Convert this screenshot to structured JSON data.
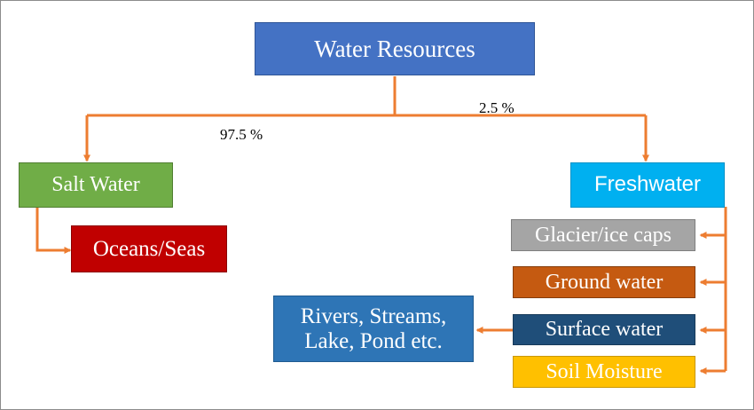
{
  "diagram": {
    "root": {
      "label": "Water Resources",
      "color": "#4472c4"
    },
    "edges": {
      "salt_pct": "97.5 %",
      "fresh_pct": "2.5 %",
      "color": "#ed7d31"
    },
    "salt_water": {
      "label": "Salt Water",
      "color": "#70ad47",
      "children": [
        {
          "label": "Oceans/Seas",
          "color": "#c00000"
        }
      ]
    },
    "freshwater": {
      "label": "Freshwater",
      "color": "#00b0f0",
      "children": [
        {
          "label": "Glacier/ice caps",
          "color": "#a5a5a5"
        },
        {
          "label": "Ground water",
          "color": "#c55a11"
        },
        {
          "label": "Surface water",
          "color": "#1f4e79"
        },
        {
          "label": "Soil Moisture",
          "color": "#ffc000"
        }
      ]
    },
    "surface_water_detail": {
      "line1": "Rivers, Streams,",
      "line2": "Lake, Pond etc.",
      "color": "#2e75b6"
    }
  }
}
